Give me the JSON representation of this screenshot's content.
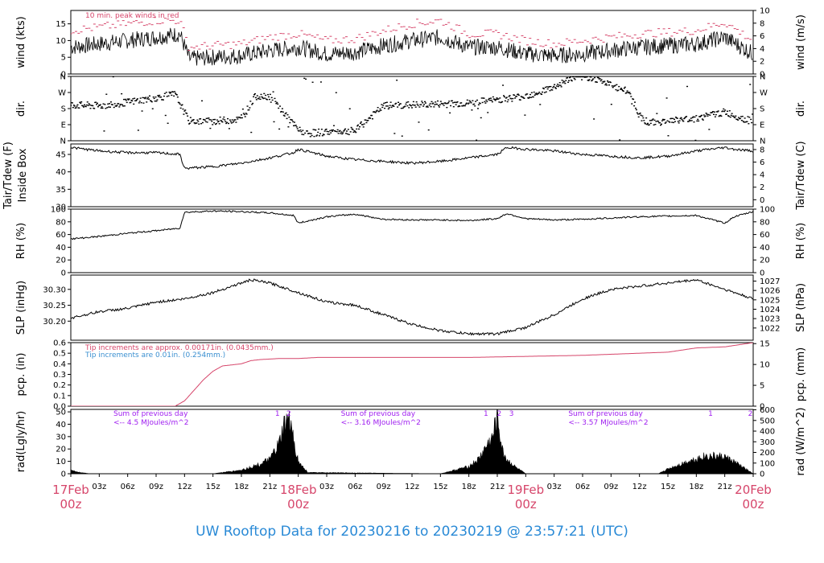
{
  "caption": "UW Rooftop Data for 20230216  to  20230219 @ 23:57:21  (UTC)",
  "colors": {
    "red": "#d6456a",
    "blue": "#3a8fd0",
    "purple": "#a020f0",
    "caption": "#2a8ad6",
    "line": "#000000"
  },
  "chart_data": [
    {
      "type": "line",
      "id": "wind",
      "ylabel": "wind (kts)",
      "y2label": "wind (m/s)",
      "ylim": [
        0,
        19
      ],
      "yticks": [
        "0",
        "5",
        "10",
        "15"
      ],
      "y2lim": [
        0,
        10
      ],
      "y2ticks": [
        "0",
        "2",
        "4",
        "6",
        "8",
        "10"
      ],
      "annotation": "10 min. peak winds in red",
      "series": [
        {
          "name": "wind",
          "x": [
            0,
            3,
            6,
            9,
            11.5,
            12.5,
            15,
            18,
            21,
            24,
            27,
            30,
            33,
            36,
            39,
            42,
            45,
            48,
            51,
            54,
            57,
            60,
            63,
            66,
            69,
            72
          ],
          "y": [
            8,
            9,
            10,
            11,
            12,
            4.5,
            5,
            5.5,
            7,
            8,
            6,
            6.5,
            8.5,
            10,
            11,
            8,
            8,
            6,
            5.5,
            6,
            7,
            8,
            8.5,
            9,
            11,
            6
          ]
        },
        {
          "name": "10 min. peak",
          "x": [
            0,
            3,
            6,
            9,
            11.5,
            12.5,
            15,
            18,
            21,
            24,
            27,
            30,
            33,
            36,
            39,
            42,
            45,
            48,
            51,
            54,
            57,
            60,
            63,
            66,
            69,
            72
          ],
          "y": [
            13,
            14,
            15,
            16,
            16,
            8,
            8.5,
            9,
            11,
            12,
            10,
            10.5,
            13,
            15,
            16,
            12,
            12,
            10,
            9,
            10,
            11,
            12,
            12.5,
            13,
            15.5,
            10
          ]
        }
      ]
    },
    {
      "type": "scatter",
      "id": "dir",
      "ylabel": "dir.",
      "y2label": "dir.",
      "ylim": [
        0,
        360
      ],
      "yticks": [
        "N",
        "E",
        "S",
        "W",
        "N"
      ],
      "y2ticks": [
        "N",
        "E",
        "S",
        "W",
        "N"
      ],
      "series": [
        {
          "name": "dir",
          "x": [
            0,
            3,
            6,
            9,
            11,
            12.5,
            15,
            18,
            19.5,
            21,
            24,
            25,
            27,
            30,
            33,
            36,
            39,
            42,
            45,
            48,
            51,
            53,
            55,
            57,
            59,
            60,
            61,
            63,
            66,
            69,
            72
          ],
          "y": [
            200,
            195,
            215,
            240,
            260,
            110,
            110,
            120,
            250,
            250,
            60,
            40,
            50,
            55,
            195,
            200,
            205,
            210,
            230,
            250,
            300,
            355,
            355,
            310,
            270,
            140,
            100,
            110,
            125,
            160,
            105
          ]
        }
      ]
    },
    {
      "type": "line",
      "id": "temp",
      "ylabel": "Tair/Tdew (F)",
      "ylabel2": "Inside Box",
      "y2label": "Tair/Tdew (C)",
      "ylim": [
        30,
        48
      ],
      "yticks": [
        "30",
        "35",
        "40",
        "45"
      ],
      "y2lim": [
        -1.11,
        8.89
      ],
      "y2ticks": [
        "0",
        "2",
        "4",
        "6",
        "8"
      ],
      "series": [
        {
          "name": "Tair",
          "x": [
            0,
            3,
            6,
            9,
            11.5,
            12,
            15,
            18,
            21,
            23.5,
            24,
            27,
            30,
            33,
            36,
            39,
            42,
            45,
            46,
            48,
            51,
            54,
            57,
            60,
            63,
            66,
            69,
            70,
            72
          ],
          "y": [
            47,
            46,
            45.5,
            45.5,
            45,
            41,
            41.5,
            42.5,
            44,
            45.5,
            46.5,
            44.5,
            43.5,
            43,
            42.5,
            43,
            44,
            45,
            47,
            46.5,
            46,
            45,
            44.5,
            44,
            44.5,
            46,
            47,
            46.5,
            46
          ]
        }
      ]
    },
    {
      "type": "line",
      "id": "rh",
      "ylabel": "RH (%)",
      "y2label": "RH (%)",
      "ylim": [
        0,
        100
      ],
      "yticks": [
        "0",
        "20",
        "40",
        "60",
        "80",
        "100"
      ],
      "y2ticks": [
        "0",
        "20",
        "40",
        "60",
        "80",
        "100"
      ],
      "series": [
        {
          "name": "RH",
          "x": [
            0,
            3,
            6,
            9,
            11.5,
            12,
            15,
            18,
            21,
            23.5,
            24,
            27,
            30,
            33,
            36,
            39,
            42,
            45,
            46,
            48,
            51,
            54,
            57,
            60,
            63,
            66,
            69,
            70,
            72
          ],
          "y": [
            53,
            57,
            62,
            66,
            70,
            95,
            97,
            96,
            94,
            90,
            78,
            88,
            92,
            84,
            83,
            83,
            82,
            85,
            93,
            85,
            83,
            84,
            86,
            88,
            89,
            90,
            78,
            88,
            96
          ]
        }
      ]
    },
    {
      "type": "line",
      "id": "slp",
      "ylabel": "SLP (inHg)",
      "y2label": "SLP (hPa)",
      "ylim": [
        30.14,
        30.345
      ],
      "yticks": [
        "30.20",
        "30.25",
        "30.30"
      ],
      "y2ticks": [
        "1022",
        "1023",
        "1024",
        "1025",
        "1026",
        "1027"
      ],
      "series": [
        {
          "name": "SLP",
          "x": [
            0,
            3,
            6,
            9,
            12,
            15,
            18,
            19,
            21,
            24,
            27,
            30,
            33,
            36,
            39,
            42,
            45,
            48,
            51,
            54,
            57,
            60,
            63,
            66,
            69,
            72
          ],
          "y": [
            30.21,
            30.23,
            30.24,
            30.26,
            30.27,
            30.29,
            30.32,
            30.33,
            30.32,
            30.29,
            30.26,
            30.25,
            30.22,
            30.19,
            30.17,
            30.16,
            30.16,
            30.18,
            30.22,
            30.27,
            30.3,
            30.31,
            30.32,
            30.33,
            30.3,
            30.27
          ]
        }
      ]
    },
    {
      "type": "line",
      "id": "pcp",
      "ylabel": "pcp. (in)",
      "y2label": "pcp. (mm)",
      "ylim": [
        0,
        0.6
      ],
      "yticks": [
        "0.0",
        "0.1",
        "0.2",
        "0.3",
        "0.4",
        "0.5",
        "0.6"
      ],
      "y2ticks": [
        "0",
        "5",
        "10",
        "15"
      ],
      "annotations": [
        "Tip increments are approx. 0.00171in. (0.0435mm.)",
        "Tip increments are 0.01in. (0.254mm.)"
      ],
      "series": [
        {
          "name": "pcp",
          "x": [
            0,
            11,
            12,
            13,
            14,
            15,
            16,
            18,
            19,
            20,
            22,
            24,
            26,
            30,
            36,
            42,
            48,
            54,
            60,
            63,
            66,
            69,
            72
          ],
          "y": [
            0,
            0,
            0.05,
            0.15,
            0.25,
            0.33,
            0.38,
            0.4,
            0.43,
            0.44,
            0.45,
            0.45,
            0.46,
            0.46,
            0.46,
            0.46,
            0.47,
            0.48,
            0.5,
            0.51,
            0.55,
            0.56,
            0.6
          ]
        }
      ]
    },
    {
      "type": "area",
      "id": "rad",
      "ylabel": "rad(Lgly/hr)",
      "y2label": "rad (W/m^2)",
      "ylim": [
        0,
        52
      ],
      "yticks": [
        "0",
        "10",
        "20",
        "30",
        "40",
        "50"
      ],
      "y2ticks": [
        "0",
        "100",
        "200",
        "300",
        "400",
        "500",
        "600"
      ],
      "day_markers": [
        "1",
        "2",
        "1",
        "2",
        "3",
        "1",
        "2"
      ],
      "day_summaries": [
        {
          "line1": "Sum of previous day",
          "line2": "<-- 4.5 MJoules/m^2"
        },
        {
          "line1": "Sum of previous day",
          "line2": "<-- 3.16 MJoules/m^2"
        },
        {
          "line1": "Sum of previous day",
          "line2": "<-- 3.57 MJoules/m^2"
        }
      ],
      "series": [
        {
          "name": "rad",
          "x": [
            0,
            1,
            2,
            15,
            16,
            18,
            20,
            21,
            22,
            22.5,
            23,
            23.5,
            24,
            25,
            39,
            40,
            42,
            43,
            44,
            44.5,
            45,
            45.5,
            46,
            47,
            48,
            62,
            63,
            65,
            67,
            69,
            70,
            71,
            72
          ],
          "y": [
            3,
            1,
            0,
            0,
            1,
            3,
            8,
            12,
            25,
            40,
            45,
            30,
            10,
            1,
            0,
            2,
            6,
            12,
            25,
            30,
            50,
            20,
            12,
            5,
            0,
            0,
            4,
            10,
            15,
            14,
            10,
            5,
            0
          ]
        }
      ]
    }
  ],
  "x_axis": {
    "xlim": [
      0,
      72
    ],
    "hour_ticks": [
      "03z",
      "06z",
      "09z",
      "12z",
      "15z",
      "18z",
      "21z",
      "03z",
      "06z",
      "09z",
      "12z",
      "15z",
      "18z",
      "21z",
      "03z",
      "06z",
      "09z",
      "12z",
      "15z",
      "18z",
      "21z"
    ],
    "date_ticks": [
      {
        "date": "17Feb",
        "hour": "00z"
      },
      {
        "date": "18Feb",
        "hour": "00z"
      },
      {
        "date": "19Feb",
        "hour": "00z"
      },
      {
        "date": "20Feb",
        "hour": "00z"
      }
    ]
  }
}
